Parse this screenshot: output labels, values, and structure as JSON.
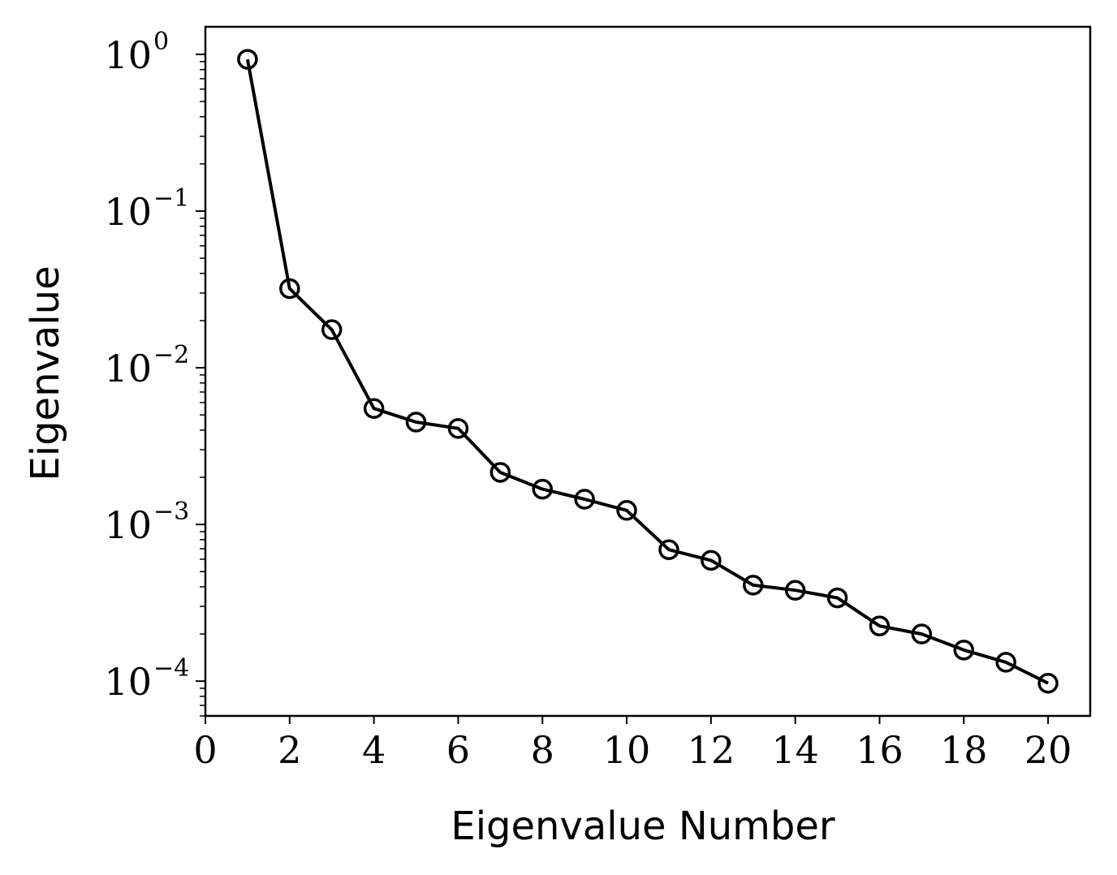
{
  "chart_data": {
    "type": "line",
    "title": "",
    "xlabel": "Eigenvalue Number",
    "ylabel": "Eigenvalue",
    "yscale": "log",
    "xlim": [
      0,
      21
    ],
    "ylim": [
      6e-05,
      1.5
    ],
    "x_ticks": [
      0,
      2,
      4,
      6,
      8,
      10,
      12,
      14,
      16,
      18,
      20
    ],
    "y_ticks": [
      {
        "value": 1,
        "base": "10",
        "exp": "0"
      },
      {
        "value": 0.1,
        "base": "10",
        "exp": "−1"
      },
      {
        "value": 0.01,
        "base": "10",
        "exp": "−2"
      },
      {
        "value": 0.001,
        "base": "10",
        "exp": "−3"
      },
      {
        "value": 0.0001,
        "base": "10",
        "exp": "−4"
      }
    ],
    "grid": false,
    "line_color": "#000000",
    "marker": "open-circle",
    "series": [
      {
        "x": [
          1,
          2,
          3,
          4,
          5,
          6,
          7,
          8,
          9,
          10,
          11,
          12,
          13,
          14,
          15,
          16,
          17,
          18,
          19,
          20
        ],
        "y": [
          0.93,
          0.032,
          0.0175,
          0.0055,
          0.0045,
          0.0041,
          0.00215,
          0.00168,
          0.00145,
          0.00123,
          0.00069,
          0.00059,
          0.00041,
          0.00038,
          0.00034,
          0.000225,
          0.0002,
          0.000158,
          0.000132,
          9.7e-05
        ]
      }
    ]
  }
}
